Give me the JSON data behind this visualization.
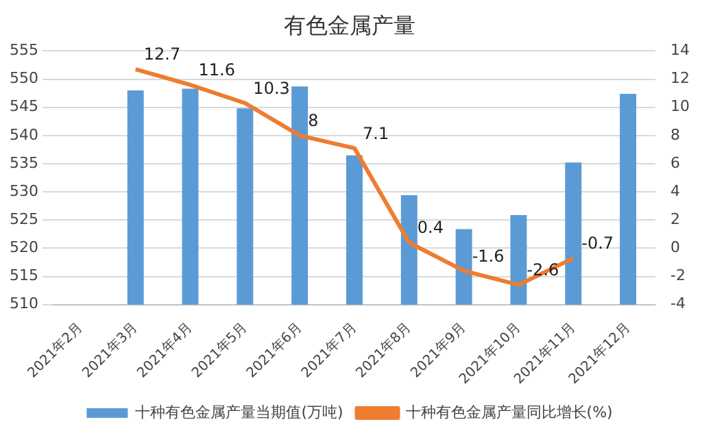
{
  "chart_data": {
    "type": "bar",
    "title": "有色金属产量",
    "categories": [
      "2021年2月",
      "2021年3月",
      "2021年4月",
      "2021年5月",
      "2021年6月",
      "2021年7月",
      "2021年8月",
      "2021年9月",
      "2021年10月",
      "2021年11月",
      "2021年12月"
    ],
    "series": [
      {
        "name": "十种有色金属产量当期值(万吨)",
        "color": "#5b9bd5",
        "values": [
          null,
          548,
          548.3,
          544.8,
          548.7,
          536.5,
          529.4,
          523.4,
          525.9,
          535.2,
          547.4
        ]
      },
      {
        "name": "十种有色金属产量同比增长(%)",
        "type": "line",
        "axis": "y2",
        "color": "#ed7d31",
        "values": [
          null,
          12.7,
          11.6,
          10.3,
          8,
          7.1,
          0.4,
          -1.6,
          -2.6,
          -0.7,
          null
        ],
        "value_labels": [
          null,
          "12.7",
          "11.6",
          "10.3",
          "8",
          "7.1",
          "0.4",
          "-1.6",
          "-2.6",
          "-0.7",
          null
        ]
      }
    ],
    "ylim": [
      510,
      555
    ],
    "yticks": [
      510,
      515,
      520,
      525,
      530,
      535,
      540,
      545,
      550,
      555
    ],
    "y2lim": [
      -4,
      14
    ],
    "y2ticks": [
      -4,
      -2,
      0,
      2,
      4,
      6,
      8,
      10,
      12,
      14
    ],
    "grid": "y",
    "legend": "bottom",
    "marker": "none",
    "line_style": "solid"
  }
}
